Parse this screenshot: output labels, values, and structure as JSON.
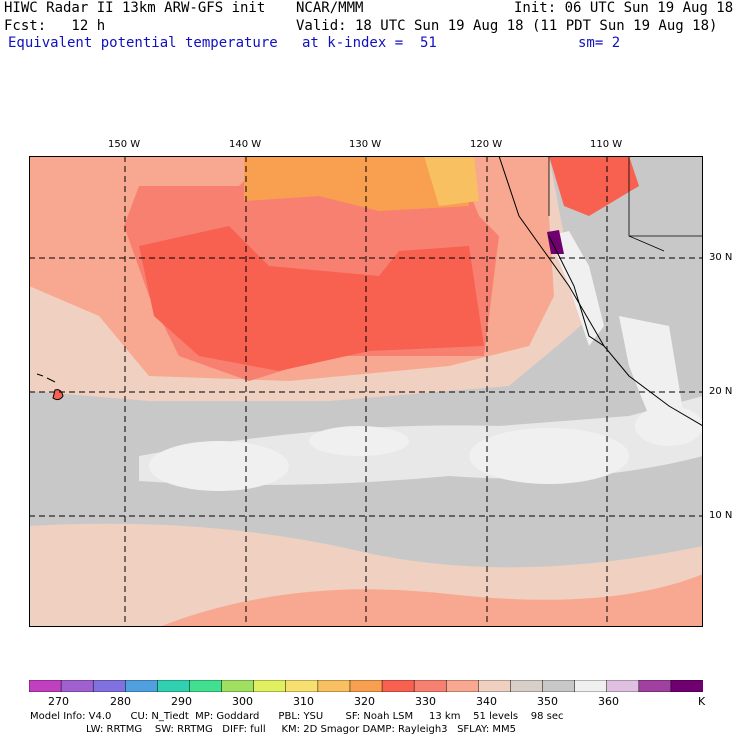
{
  "header": {
    "left1": "HIWC Radar II 13km ARW-GFS init",
    "left2": "Fcst:   12 h",
    "center1": "NCAR/MMM",
    "init": "Init: 06 UTC Sun 19 Aug 18",
    "valid": "Valid: 18 UTC Sun 19 Aug 18 (11 PDT Sun 19 Aug 18)",
    "field": "Equivalent potential temperature",
    "level": "at k-index =  51",
    "smooth": "sm= 2"
  },
  "lon_labels": [
    "150 W",
    "140 W",
    "130 W",
    "120 W",
    "110 W"
  ],
  "lat_labels": [
    "30 N",
    "20 N",
    "10 N"
  ],
  "colorbar": {
    "labels": [
      "270",
      "280",
      "290",
      "300",
      "310",
      "320",
      "330",
      "340",
      "350",
      "360",
      "K"
    ],
    "colors": [
      "#c040c0",
      "#a060d0",
      "#8070e0",
      "#50a0e0",
      "#30d0b0",
      "#40e090",
      "#a0e060",
      "#e0f060",
      "#f8e070",
      "#f8c060",
      "#f8a050",
      "#f86050",
      "#f88070",
      "#f8a890",
      "#f0d0c0",
      "#d8cfc8",
      "#c8c8c8",
      "#f0f0f0",
      "#e0c0e0",
      "#a040a0",
      "#700070"
    ]
  },
  "model_info": {
    "line1": "Model Info: V4.0      CU: N_Tiedt  MP: Goddard      PBL: YSU       SF: Noah LSM     13 km    51 levels    98 sec",
    "line2": "LW: RRTMG    SW: RRTMG   DIFF: full     KM: 2D Smagor DAMP: Rayleigh3   SFLAY: MM5"
  }
}
